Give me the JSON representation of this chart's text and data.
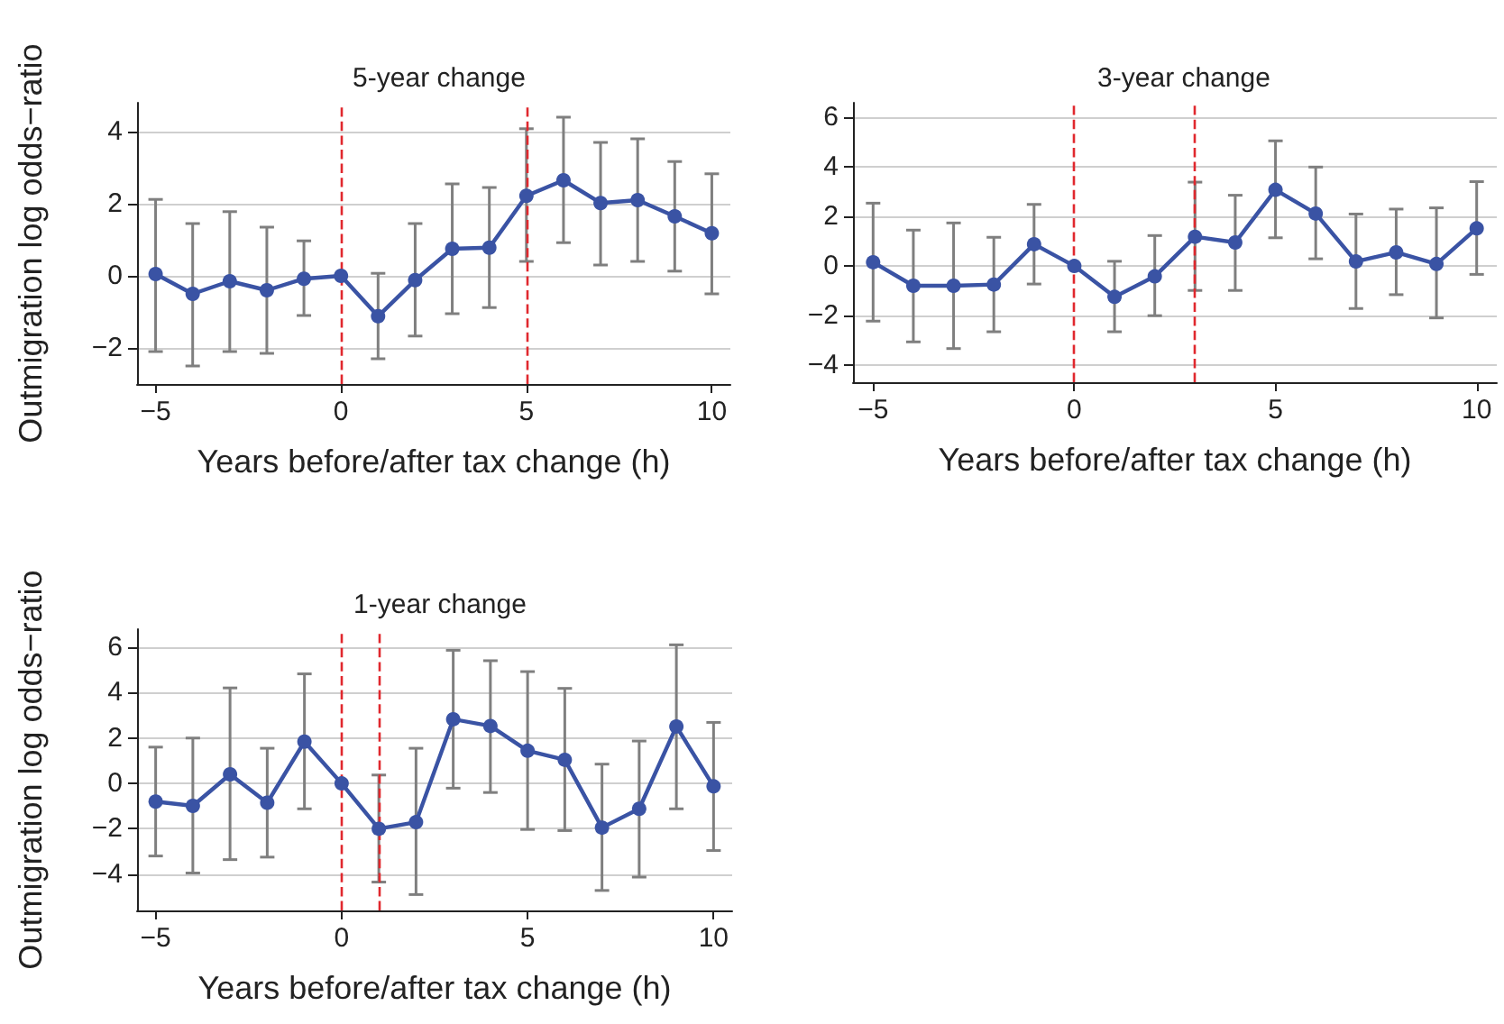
{
  "chart_data": [
    {
      "type": "line",
      "title": "5-year change",
      "xlabel": "Years before/after tax change (h)",
      "ylabel": "Outmigration log odds−ratio",
      "x": [
        -5,
        -4,
        -3,
        -2,
        -1,
        0,
        1,
        2,
        3,
        4,
        5,
        6,
        7,
        8,
        9,
        10
      ],
      "values": [
        0.05,
        -0.5,
        -0.15,
        -0.4,
        -0.08,
        0,
        -1.12,
        -0.12,
        0.75,
        0.78,
        2.22,
        2.65,
        2.02,
        2.1,
        1.65,
        1.18
      ],
      "errors": [
        [
          -2.1,
          2.12
        ],
        [
          -2.5,
          1.45
        ],
        [
          -2.1,
          1.78
        ],
        [
          -2.15,
          1.35
        ],
        [
          -1.1,
          0.97
        ],
        null,
        [
          -2.3,
          0.07
        ],
        [
          -1.67,
          1.45
        ],
        [
          -1.05,
          2.55
        ],
        [
          -0.88,
          2.45
        ],
        [
          0.4,
          4.08
        ],
        [
          0.92,
          4.4
        ],
        [
          0.3,
          3.7
        ],
        [
          0.4,
          3.8
        ],
        [
          0.13,
          3.17
        ],
        [
          -0.5,
          2.83
        ]
      ],
      "color": "#3a53a4",
      "marker": "circle",
      "line_style": "solid",
      "grid": "y",
      "xlim": [
        -5.5,
        10.5
      ],
      "xticks": [
        -5,
        0,
        5,
        10
      ],
      "ylim": [
        -3,
        4.8
      ],
      "yticks": [
        -2,
        0,
        2,
        4
      ],
      "ref_lines": [
        {
          "axis": "x",
          "value": 0,
          "label": null,
          "color": "#e0282e",
          "line_style": "dashed"
        },
        {
          "axis": "x",
          "value": 5,
          "label": null,
          "color": "#e0282e",
          "line_style": "dashed"
        }
      ]
    },
    {
      "type": "line",
      "title": "3-year change",
      "xlabel": "Years before/after tax change (h)",
      "x": [
        -5,
        -4,
        -3,
        -2,
        -1,
        0,
        1,
        2,
        3,
        4,
        5,
        6,
        7,
        8,
        9,
        10
      ],
      "values": [
        0.15,
        -0.8,
        -0.8,
        -0.75,
        0.88,
        0,
        -1.25,
        -0.42,
        1.18,
        0.95,
        3.08,
        2.12,
        0.18,
        0.55,
        0.08,
        1.52
      ],
      "errors": [
        [
          -2.23,
          2.54
        ],
        [
          -3.07,
          1.45
        ],
        [
          -3.34,
          1.74
        ],
        [
          -2.66,
          1.16
        ],
        [
          -0.73,
          2.49
        ],
        null,
        [
          -2.66,
          0.19
        ],
        [
          -2.01,
          1.23
        ],
        [
          -0.99,
          3.39
        ],
        [
          -0.99,
          2.86
        ],
        [
          1.14,
          5.06
        ],
        [
          0.29,
          4.0
        ],
        [
          -1.72,
          2.1
        ],
        [
          -1.16,
          2.3
        ],
        [
          -2.1,
          2.35
        ],
        [
          -0.34,
          3.41
        ]
      ],
      "color": "#3a53a4",
      "marker": "circle",
      "line_style": "solid",
      "grid": "y",
      "xlim": [
        -5.5,
        10.5
      ],
      "xticks": [
        -5,
        0,
        5,
        10
      ],
      "ylim": [
        -4.7,
        6.6
      ],
      "yticks": [
        -4,
        -2,
        0,
        2,
        4,
        6
      ],
      "ref_lines": [
        {
          "axis": "x",
          "value": 0,
          "label": null,
          "color": "#e0282e",
          "line_style": "dashed"
        },
        {
          "axis": "x",
          "value": 3,
          "label": null,
          "color": "#e0282e",
          "line_style": "dashed"
        }
      ]
    },
    {
      "type": "line",
      "title": "1-year change",
      "xlabel": "Years before/after tax change (h)",
      "ylabel": "Outmigration log odds−ratio",
      "x": [
        -5,
        -4,
        -3,
        -2,
        -1,
        0,
        1,
        2,
        3,
        4,
        5,
        6,
        7,
        8,
        9,
        10
      ],
      "values": [
        -0.8,
        -0.99,
        0.4,
        -0.85,
        1.84,
        0,
        -2.0,
        -1.71,
        2.83,
        2.53,
        1.44,
        1.04,
        -1.95,
        -1.12,
        2.51,
        -0.13
      ],
      "errors": [
        [
          -3.2,
          1.6
        ],
        [
          -3.95,
          2.0
        ],
        [
          -3.36,
          4.21
        ],
        [
          -3.25,
          1.55
        ],
        [
          -1.12,
          4.83
        ],
        null,
        [
          -4.35,
          0.37
        ],
        [
          -4.9,
          1.55
        ],
        [
          -0.21,
          5.87
        ],
        [
          -0.4,
          5.41
        ],
        [
          -2.03,
          4.93
        ],
        [
          -2.08,
          4.19
        ],
        [
          -4.72,
          0.85
        ],
        [
          -4.13,
          1.87
        ],
        [
          -1.12,
          6.11
        ],
        [
          -2.96,
          2.69
        ]
      ],
      "color": "#3a53a4",
      "marker": "circle",
      "line_style": "solid",
      "grid": "y",
      "xlim": [
        -5.5,
        10.5
      ],
      "xticks": [
        -5,
        0,
        5,
        10
      ],
      "ylim": [
        -5.6,
        6.8
      ],
      "yticks": [
        -4,
        -2,
        0,
        2,
        4,
        6
      ],
      "ref_lines": [
        {
          "axis": "x",
          "value": 0,
          "label": null,
          "color": "#e0282e",
          "line_style": "dashed"
        },
        {
          "axis": "x",
          "value": 1,
          "label": null,
          "color": "#e0282e",
          "line_style": "dashed"
        }
      ]
    }
  ]
}
